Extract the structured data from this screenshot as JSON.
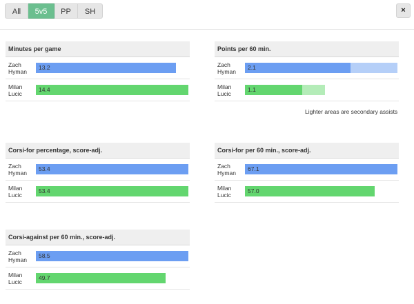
{
  "tabs": [
    {
      "label": "All",
      "active": false
    },
    {
      "label": "5v5",
      "active": true
    },
    {
      "label": "PP",
      "active": false
    },
    {
      "label": "SH",
      "active": false
    }
  ],
  "close_label": "×",
  "colors": {
    "player1": "#6c9ef2",
    "player2": "#63d66f",
    "player1_secondary": "#b5cff8",
    "player2_secondary": "#b4ecb8",
    "active_tab": "#6bbf8f"
  },
  "players": [
    {
      "first": "Zach",
      "last": "Hyman"
    },
    {
      "first": "Milan",
      "last": "Lucic"
    }
  ],
  "panels": [
    {
      "title": "Minutes per game",
      "max": 14.4,
      "rows": [
        {
          "label": "13.2",
          "value": 13.2,
          "color": "blue"
        },
        {
          "label": "14.4",
          "value": 14.4,
          "color": "green"
        }
      ]
    },
    {
      "title": "Points per 60 min.",
      "max": 2.1,
      "rows": [
        {
          "label": "2.1",
          "value": 1.45,
          "total": 2.1,
          "color": "blue"
        },
        {
          "label": "1.1",
          "value": 0.79,
          "total": 1.1,
          "color": "green"
        }
      ]
    },
    {
      "title": "Corsi-for percentage, score-adj.",
      "max": 53.4,
      "rows": [
        {
          "label": "53.4",
          "value": 53.4,
          "color": "blue"
        },
        {
          "label": "53.4",
          "value": 53.4,
          "color": "green"
        }
      ]
    },
    {
      "title": "Corsi-for per 60 min., score-adj.",
      "max": 67.1,
      "rows": [
        {
          "label": "67.1",
          "value": 67.1,
          "color": "blue"
        },
        {
          "label": "57.0",
          "value": 57.0,
          "color": "green"
        }
      ]
    },
    {
      "title": "Corsi-against per 60 min., score-adj.",
      "max": 58.5,
      "rows": [
        {
          "label": "58.5",
          "value": 58.5,
          "color": "blue"
        },
        {
          "label": "49.7",
          "value": 49.7,
          "color": "green"
        }
      ]
    }
  ],
  "footnote": "Lighter areas are secondary assists"
}
